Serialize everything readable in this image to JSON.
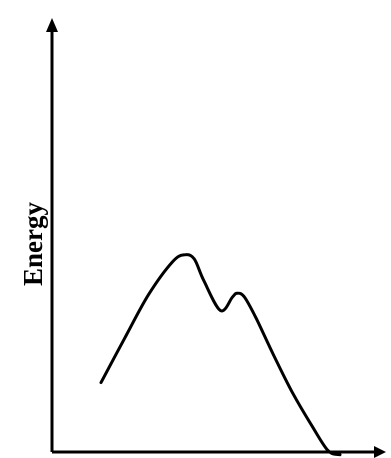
{
  "chart_data": {
    "type": "line",
    "title": "",
    "xlabel": "",
    "ylabel": "Energy",
    "xlim": [
      0,
      100
    ],
    "ylim": [
      0,
      100
    ],
    "grid": false,
    "legend": "none",
    "series": [
      {
        "values_x": [
          0,
          10,
          20,
          30,
          35,
          39,
          43,
          50,
          55,
          57,
          60,
          65,
          72,
          80,
          88,
          95,
          100
        ],
        "values_y": [
          25.5,
          42,
          58,
          70,
          72.5,
          71,
          63,
          52,
          57,
          58.4,
          57,
          49,
          36,
          22,
          10,
          0.5,
          -1
        ]
      }
    ],
    "axis_color": "#000000",
    "line_color": "#000000"
  }
}
